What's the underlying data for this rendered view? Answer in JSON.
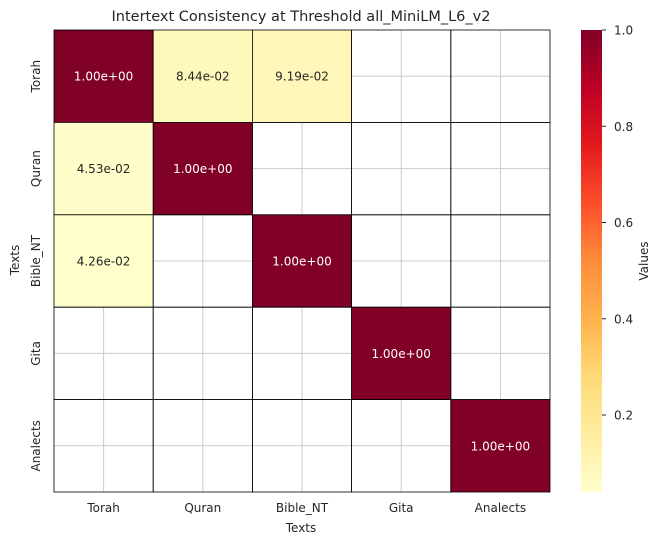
{
  "chart_data": {
    "type": "heatmap",
    "title": "Intertext Consistency at Threshold all_MiniLM_L6_v2",
    "xlabel": "Texts",
    "ylabel": "Texts",
    "x_categories": [
      "Torah",
      "Quran",
      "Bible_NT",
      "Gita",
      "Analects"
    ],
    "y_categories": [
      "Torah",
      "Quran",
      "Bible_NT",
      "Gita",
      "Analects"
    ],
    "values": [
      [
        1.0,
        0.0844,
        0.0919,
        null,
        null
      ],
      [
        0.0453,
        1.0,
        null,
        null,
        null
      ],
      [
        0.0426,
        null,
        1.0,
        null,
        null
      ],
      [
        null,
        null,
        null,
        1.0,
        null
      ],
      [
        null,
        null,
        null,
        null,
        1.0
      ]
    ],
    "cell_labels": [
      [
        "1.00e+00",
        "8.44e-02",
        "9.19e-02",
        "",
        ""
      ],
      [
        "4.53e-02",
        "1.00e+00",
        "",
        "",
        ""
      ],
      [
        "4.26e-02",
        "",
        "1.00e+00",
        "",
        ""
      ],
      [
        "",
        "",
        "",
        "1.00e+00",
        ""
      ],
      [
        "",
        "",
        "",
        "",
        "1.00e+00"
      ]
    ],
    "colorbar": {
      "label": "Values",
      "min": 0.04,
      "max": 1.0,
      "ticks": [
        0.2,
        0.4,
        0.6,
        0.8,
        1.0
      ],
      "tick_labels": [
        "0.2",
        "0.4",
        "0.6",
        "0.8",
        "1.0"
      ],
      "colormap": "YlOrRd"
    },
    "grid": true,
    "colors": {
      "low": "#ffffcc",
      "high": "#800026",
      "grid": "#cccccc",
      "cell_border": "#000000",
      "text_dark": "#262626",
      "text_light": "#ffffff"
    }
  }
}
